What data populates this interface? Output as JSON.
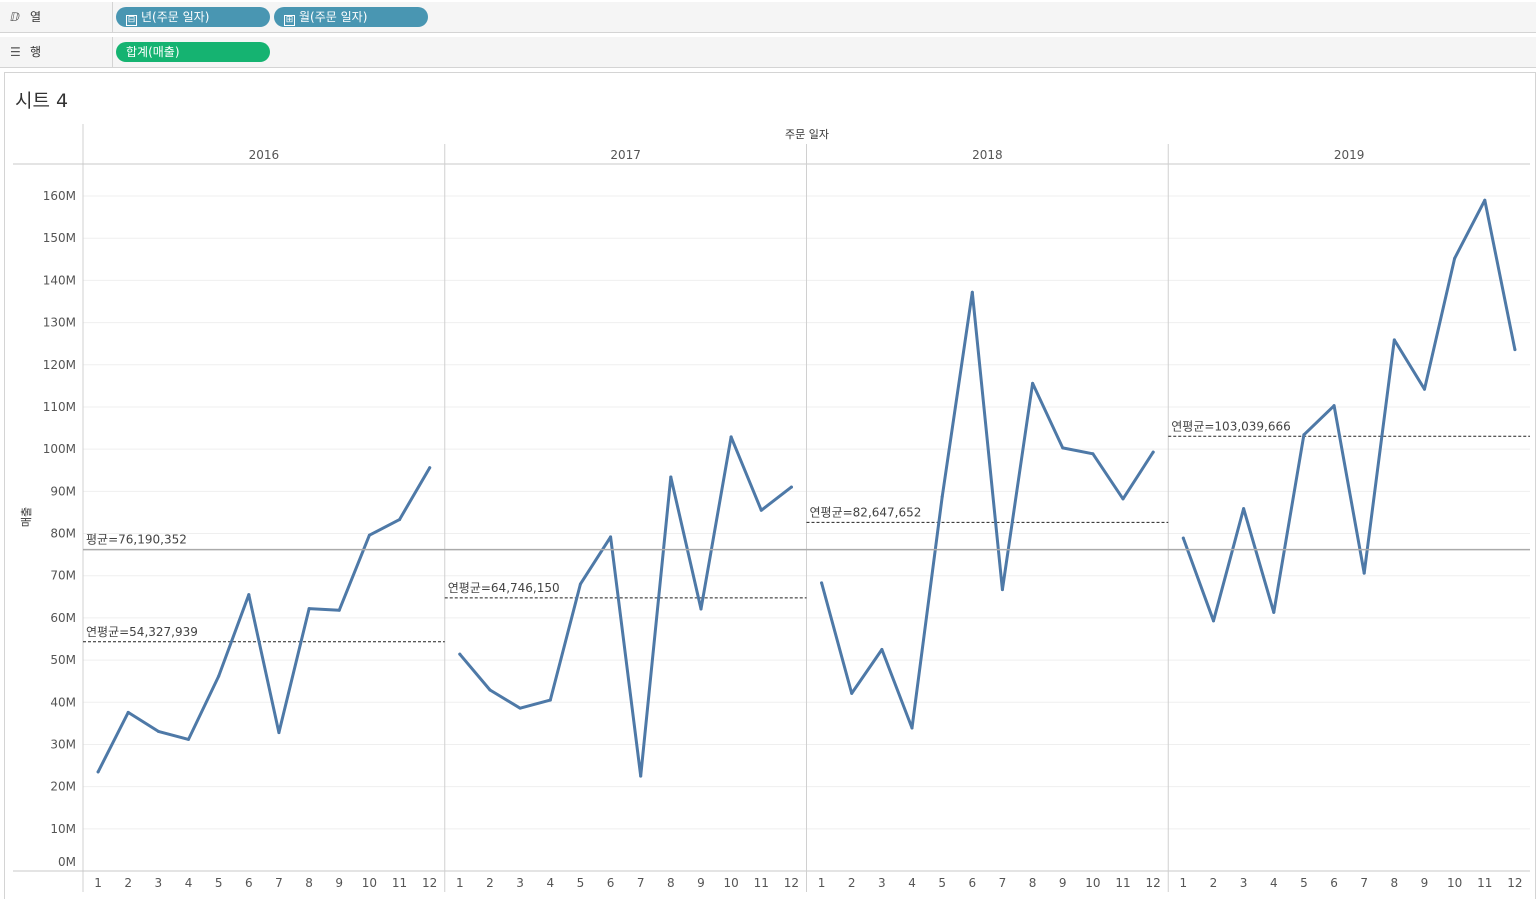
{
  "shelves": {
    "columns": {
      "label": "열",
      "icon": "columns-icon",
      "pills": [
        {
          "symbol": "⊟",
          "text": "년(주문 일자)"
        },
        {
          "symbol": "⊞",
          "text": "월(주문 일자)"
        }
      ]
    },
    "rows": {
      "label": "행",
      "icon": "rows-icon",
      "pills": [
        {
          "text": "합계(매출)"
        }
      ]
    }
  },
  "sheet": {
    "title": "시트 4"
  },
  "colors": {
    "line": "#4e79a7",
    "pill_blue": "#4996b2",
    "pill_green": "#15b371",
    "ref_line": "#aaaaaa"
  },
  "chart_data": {
    "type": "line",
    "title": "주문 일자",
    "ylabel": "매출",
    "ylim": [
      0,
      165000000
    ],
    "yticks": [
      "160M",
      "150M",
      "140M",
      "130M",
      "120M",
      "110M",
      "100M",
      "90M",
      "80M",
      "70M",
      "60M",
      "50M",
      "40M",
      "30M",
      "20M",
      "10M",
      "0M"
    ],
    "ytick_values": [
      160000000,
      150000000,
      140000000,
      130000000,
      120000000,
      110000000,
      100000000,
      90000000,
      80000000,
      70000000,
      60000000,
      50000000,
      40000000,
      30000000,
      20000000,
      10000000,
      0
    ],
    "months": [
      "1",
      "2",
      "3",
      "4",
      "5",
      "6",
      "7",
      "8",
      "9",
      "10",
      "11",
      "12"
    ],
    "overall_average": {
      "value": 76190352,
      "label": "평균=76,190,352"
    },
    "panels": [
      {
        "year": "2016",
        "values": [
          23500000,
          37600000,
          33100000,
          31200000,
          46200000,
          65500000,
          32800000,
          62200000,
          61800000,
          79600000,
          83300000,
          95600000
        ],
        "annual_average": 54327939,
        "annual_label": "연평균=54,327,939"
      },
      {
        "year": "2017",
        "values": [
          51400000,
          42900000,
          38600000,
          40500000,
          68000000,
          79200000,
          22500000,
          93400000,
          62100000,
          102900000,
          85500000,
          91000000
        ],
        "annual_average": 64746150,
        "annual_label": "연평균=64,746,150"
      },
      {
        "year": "2018",
        "values": [
          68300000,
          42100000,
          52500000,
          33900000,
          88700000,
          137200000,
          66700000,
          115600000,
          100300000,
          98900000,
          88200000,
          99300000
        ],
        "annual_average": 82647652,
        "annual_label": "연평균=82,647,652"
      },
      {
        "year": "2019",
        "values": [
          78900000,
          59300000,
          85900000,
          61300000,
          103400000,
          110300000,
          70600000,
          125900000,
          114200000,
          145200000,
          159000000,
          123600000
        ],
        "annual_average": 103039666,
        "annual_label": "연평균=103,039,666"
      }
    ]
  }
}
